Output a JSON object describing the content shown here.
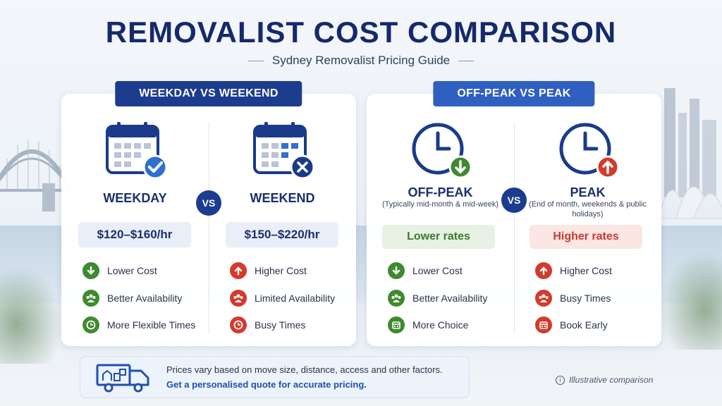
{
  "header": {
    "title": "REMOVALIST COST COMPARISON",
    "subtitle": "Sydney Removalist Pricing Guide"
  },
  "vs_label": "VS",
  "left_panel": {
    "banner": "WEEKDAY VS WEEKEND",
    "weekday": {
      "title": "WEEKDAY",
      "price": "$120–$160/hr",
      "features": [
        {
          "label": "Lower Cost",
          "icon": "arrow-down-icon"
        },
        {
          "label": "Better Availability",
          "icon": "people-icon"
        },
        {
          "label": "More Flexible Times",
          "icon": "clock-icon"
        }
      ]
    },
    "weekend": {
      "title": "WEEKEND",
      "price": "$150–$220/hr",
      "features": [
        {
          "label": "Higher Cost",
          "icon": "arrow-up-icon"
        },
        {
          "label": "Limited Availability",
          "icon": "people-icon"
        },
        {
          "label": "Busy Times",
          "icon": "clock-icon"
        }
      ]
    }
  },
  "right_panel": {
    "banner": "OFF-PEAK VS PEAK",
    "offpeak": {
      "title": "OFF-PEAK",
      "note": "(Typically mid-month & mid-week)",
      "rate": "Lower rates",
      "features": [
        {
          "label": "Lower Cost",
          "icon": "arrow-down-icon"
        },
        {
          "label": "Better Availability",
          "icon": "people-icon"
        },
        {
          "label": "More Choice",
          "icon": "calendar-icon"
        }
      ]
    },
    "peak": {
      "title": "PEAK",
      "note": "(End of month, weekends & public holidays)",
      "rate": "Higher rates",
      "features": [
        {
          "label": "Higher Cost",
          "icon": "arrow-up-icon"
        },
        {
          "label": "Busy Times",
          "icon": "people-icon"
        },
        {
          "label": "Book Early",
          "icon": "calendar-icon"
        }
      ]
    }
  },
  "footer": {
    "line1": "Prices vary based on move size, distance, access and other factors.",
    "line2": "Get a personalised quote for accurate pricing."
  },
  "disclaimer": "Illustrative comparison",
  "colors": {
    "navy": "#1c3c8f",
    "blue": "#2f5fc0",
    "green": "#3f8a2f",
    "red": "#d33b2c"
  }
}
